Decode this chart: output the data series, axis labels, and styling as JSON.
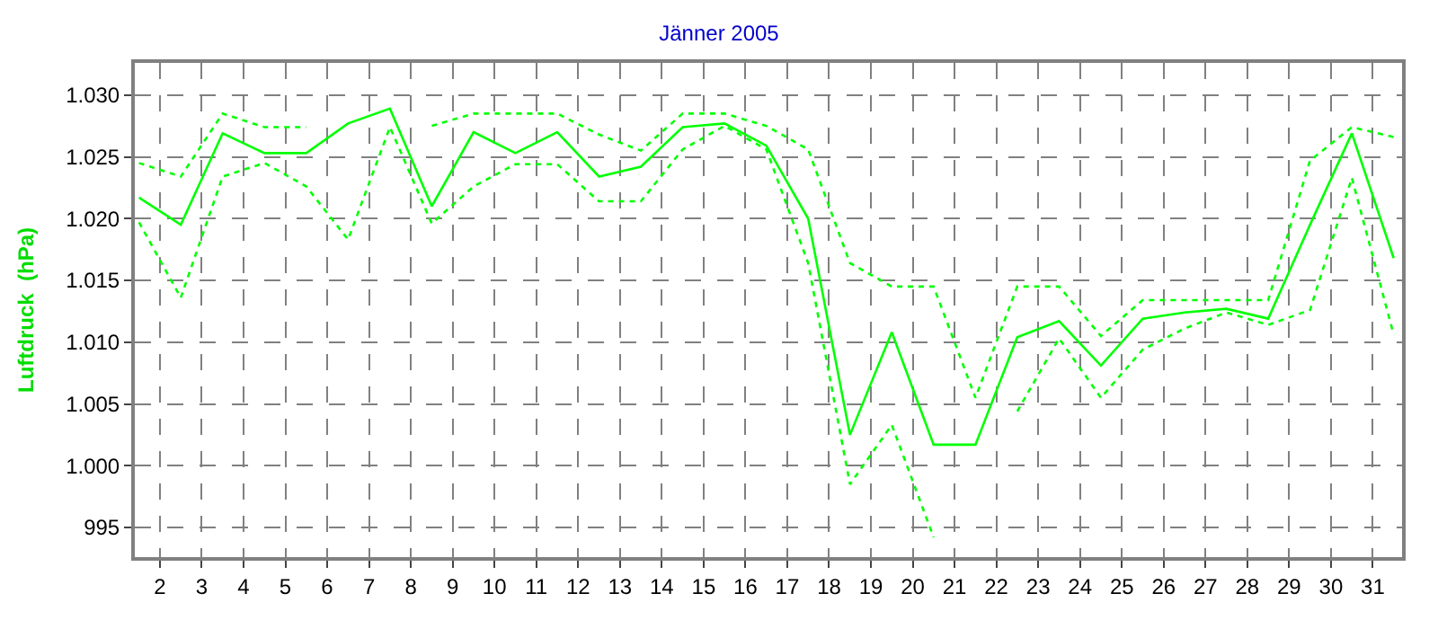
{
  "chart_data": {
    "type": "line",
    "title": "Jänner 2005",
    "ylabel": "Luftdruck  (hPa)",
    "x": [
      1.5,
      2.5,
      3.5,
      4.5,
      5.5,
      6.5,
      7.5,
      8.5,
      9.5,
      10.5,
      11.5,
      12.5,
      13.5,
      14.5,
      15.5,
      16.5,
      17.5,
      18.5,
      19.5,
      20.5,
      21.5,
      22.5,
      23.5,
      24.5,
      25.5,
      26.5,
      27.5,
      28.5,
      29.5,
      30.5,
      31.5
    ],
    "series": [
      {
        "color": "#00ff00",
        "line_style": "dotted",
        "values": [
          1024.5,
          1023.4,
          1028.5,
          1027.4,
          1027.4,
          null,
          null,
          1027.5,
          1028.5,
          1028.5,
          1028.5,
          1026.8,
          1025.5,
          1028.5,
          1028.5,
          1027.5,
          1025.6,
          1016.4,
          1014.5,
          1014.5,
          1005.5,
          1014.5,
          1014.5,
          1010.5,
          1013.4,
          1013.4,
          1013.4,
          1013.4,
          1024.7,
          1027.4,
          1026.6
        ]
      },
      {
        "color": "#00ff00",
        "line_style": "solid",
        "values": [
          1021.7,
          1019.5,
          1026.9,
          1025.3,
          1025.3,
          1027.7,
          1028.9,
          1021.0,
          1027.0,
          1025.3,
          1027.0,
          1023.4,
          1024.2,
          1027.4,
          1027.7,
          1025.9,
          1020.0,
          1002.5,
          1010.8,
          1001.7,
          1001.7,
          1010.4,
          1011.7,
          1008.1,
          1011.9,
          1012.4,
          1012.7,
          1011.9,
          1019.5,
          1026.9,
          1016.8
        ]
      },
      {
        "color": "#00ff00",
        "line_style": "dotted",
        "values": [
          1019.7,
          1013.6,
          1023.4,
          1024.5,
          1022.6,
          1018.3,
          1027.4,
          1019.6,
          1022.6,
          1024.4,
          1024.4,
          1021.4,
          1021.4,
          1025.6,
          1027.5,
          1025.6,
          1016.4,
          998.5,
          1003.3,
          994.2,
          null,
          1004.4,
          1010.3,
          1005.5,
          1009.4,
          1011.1,
          1012.4,
          1011.4,
          1012.6,
          1023.3,
          1010.6
        ]
      }
    ],
    "xlim": [
      1.4,
      31.7
    ],
    "xticks": [
      2,
      3,
      4,
      5,
      6,
      7,
      8,
      9,
      10,
      11,
      12,
      13,
      14,
      15,
      16,
      17,
      18,
      19,
      20,
      21,
      22,
      23,
      24,
      25,
      26,
      27,
      28,
      29,
      30,
      31
    ],
    "ylim": [
      992.6,
      1032.6
    ],
    "yticks": [
      995,
      {
        "value": 1000,
        "label": "1.000"
      },
      {
        "value": 1005,
        "label": "1.005"
      },
      {
        "value": 1010,
        "label": "1.010"
      },
      {
        "value": 1015,
        "label": "1.015"
      },
      {
        "value": 1020,
        "label": "1.020"
      },
      {
        "value": 1025,
        "label": "1.025"
      },
      {
        "value": 1030,
        "label": "1.030"
      }
    ],
    "grid": true
  }
}
